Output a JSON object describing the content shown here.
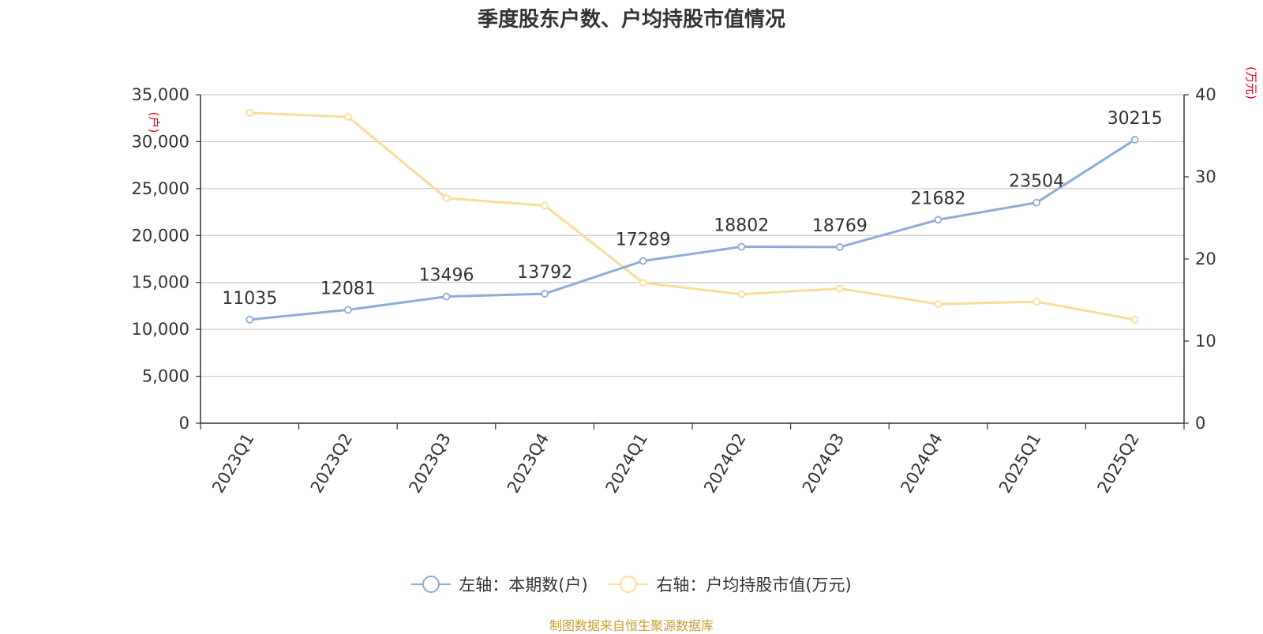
{
  "colors": {
    "series_left": "#8eacd8",
    "series_right": "#fddb9a",
    "axis_unit": "#e60012",
    "grid": "#cccccc",
    "axis": "#333333",
    "source": "#c8a035"
  },
  "chart_data": {
    "type": "line",
    "title": "季度股东户数、户均持股市值情况",
    "categories": [
      "2023Q1",
      "2023Q2",
      "2023Q3",
      "2023Q4",
      "2024Q1",
      "2024Q2",
      "2024Q3",
      "2024Q4",
      "2025Q1",
      "2025Q2"
    ],
    "left_axis": {
      "unit": "(户)",
      "ylim": [
        0,
        35000
      ],
      "ticks": [
        0,
        5000,
        10000,
        15000,
        20000,
        25000,
        30000,
        35000
      ],
      "tick_labels": [
        "0",
        "5,000",
        "10,000",
        "15,000",
        "20,000",
        "25,000",
        "30,000",
        "35,000"
      ]
    },
    "right_axis": {
      "unit": "(万元)",
      "ylim": [
        0,
        40
      ],
      "ticks": [
        0,
        10,
        20,
        30,
        40
      ],
      "tick_labels": [
        "0",
        "10",
        "20",
        "30",
        "40"
      ]
    },
    "series": [
      {
        "name": "左轴：本期数(户)",
        "axis": "left",
        "values": [
          11035,
          12081,
          13496,
          13792,
          17289,
          18802,
          18769,
          21682,
          23504,
          30215
        ],
        "labels": [
          "11035",
          "12081",
          "13496",
          "13792",
          "17289",
          "18802",
          "18769",
          "21682",
          "23504",
          "30215"
        ]
      },
      {
        "name": "右轴：户均持股市值(万元)",
        "axis": "right",
        "values": [
          37.8,
          37.3,
          27.4,
          26.5,
          17.1,
          15.7,
          16.4,
          14.5,
          14.8,
          12.6
        ]
      }
    ],
    "grid": true,
    "legend_position": "bottom"
  },
  "source": "制图数据来自恒生聚源数据库"
}
